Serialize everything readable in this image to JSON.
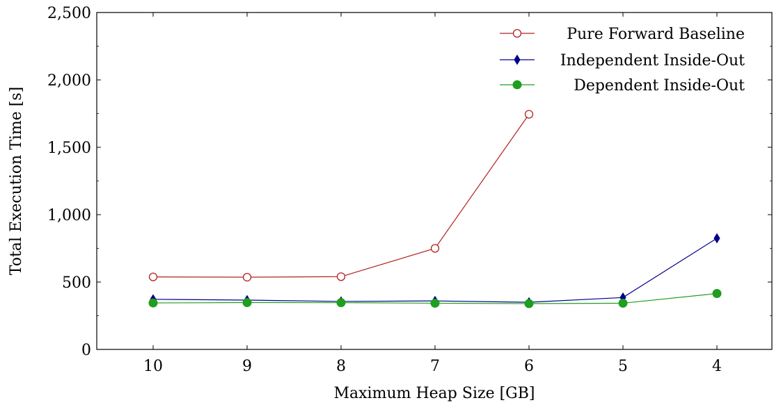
{
  "chart_data": {
    "type": "line",
    "xlabel": "Maximum Heap Size [GB]",
    "ylabel": "Total Execution Time [s]",
    "categories": [
      "10",
      "9",
      "8",
      "7",
      "6",
      "5",
      "4"
    ],
    "ylim": [
      0,
      2500
    ],
    "yticks": [
      0,
      500,
      1000,
      1500,
      2000,
      2500
    ],
    "ytick_labels": [
      "0",
      "500",
      "1,000",
      "1,500",
      "2,000",
      "2,500"
    ],
    "legend_position": "top-right",
    "grid": false,
    "series": [
      {
        "name": "Pure Forward Baseline",
        "color": "#b22222",
        "marker": "open-circle",
        "values": [
          538,
          536,
          540,
          750,
          1745,
          null,
          null
        ]
      },
      {
        "name": "Independent Inside-Out",
        "color": "#00008b",
        "marker": "diamond",
        "values": [
          372,
          366,
          356,
          360,
          350,
          385,
          825
        ]
      },
      {
        "name": "Dependent Inside-Out",
        "color": "#1f9e1f",
        "marker": "filled-circle",
        "values": [
          345,
          348,
          347,
          343,
          340,
          343,
          415
        ]
      }
    ]
  }
}
